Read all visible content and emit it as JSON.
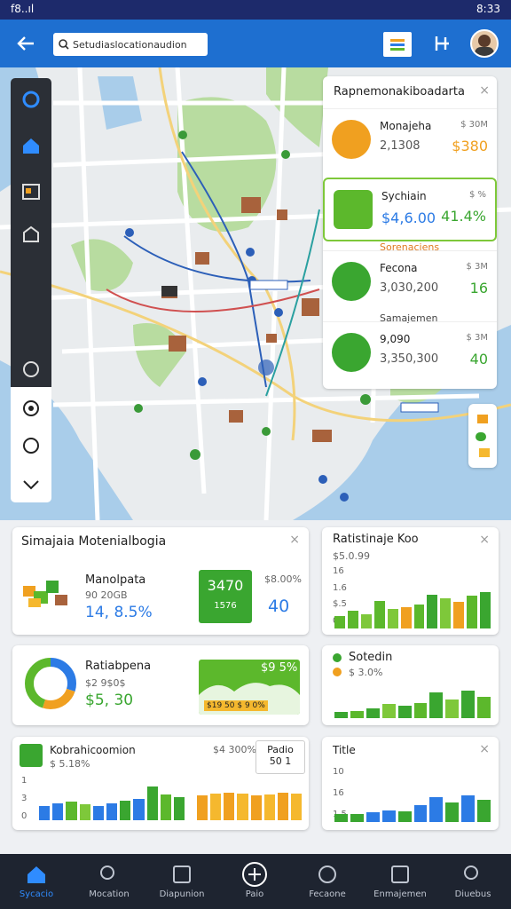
{
  "status_bar": {
    "carrier": "f8..ıl",
    "time": "8:33"
  },
  "app_bar": {
    "search": "Setudiaslocationaudion"
  },
  "side_panel": {
    "title": "Rapnemonakiboadarta",
    "items": [
      {
        "name": "Monajeha",
        "value": "2,1308",
        "tag": "$ 30M",
        "amount": "$380"
      },
      {
        "name": "Sychiain",
        "value": "$4,6.00",
        "tag": "$ %",
        "amount": "41.4%"
      },
      {
        "name": "Fecona",
        "value": "3,030,200",
        "tag": "$ 3M",
        "amount": "16"
      },
      {
        "name": "9,090",
        "value": "3,350,300",
        "tag": "$ 3M",
        "amount": "40"
      }
    ],
    "section": "Sorenaciens",
    "subsection": "Samajemen"
  },
  "cards": [
    {
      "title": "Simajaia Motenialbogia",
      "name": "Manolpata",
      "sub": "90 20GB",
      "value": "14, 8.5%",
      "badge": "3470",
      "badge_sub": "1576",
      "stat": "$8.00%",
      "stat_value": "40"
    },
    {
      "title": "Ratistinaje Koo",
      "sub": "$5.0.99",
      "yticks": [
        "16",
        "1.6",
        "$.5",
        "0"
      ],
      "values": [
        20,
        30,
        24,
        46,
        32,
        36,
        40,
        56,
        50,
        44,
        54,
        60
      ],
      "colors": [
        "#5cb82c",
        "#5cb82c",
        "#7ec83a",
        "#5cb82c",
        "#7ec83a",
        "#f0a020",
        "#5cb82c",
        "#3aa630",
        "#7ec83a",
        "#f0a020",
        "#5cb82c",
        "#3aa630"
      ]
    },
    {
      "name": "Ratiabpena",
      "sub": "$2 9$0$",
      "value": "$5, 30",
      "area_label": "$9 5%",
      "area_tag": "$19 50 $ 9 0%",
      "donut": [
        30,
        25,
        45
      ],
      "donut_colors": [
        "#2c7be5",
        "#f0a020",
        "#5cb82c"
      ]
    },
    {
      "title": "Sotedin",
      "sub": "$ 3.0%",
      "values": [
        14,
        16,
        22,
        30,
        26,
        32,
        56,
        40,
        60,
        46
      ],
      "colors": [
        "#3aa630",
        "#5cb82c",
        "#3aa630",
        "#7ec83a",
        "#3aa630",
        "#5cb82c",
        "#3aa630",
        "#7ec83a",
        "#3aa630",
        "#5cb82c"
      ]
    },
    {
      "title": "Kobrahicoomion",
      "sub": "$ 5.18%",
      "stat": "$4 300%",
      "box": "Padio",
      "box_value": "50 1",
      "yticks": [
        "1",
        "3",
        "0"
      ],
      "values": [
        30,
        36,
        38,
        34,
        30,
        36,
        40,
        44,
        70,
        54,
        48
      ],
      "colors": [
        "#2c7be5",
        "#2c7be5",
        "#5cb82c",
        "#7ec83a",
        "#2c7be5",
        "#2c7be5",
        "#3aa630",
        "#2c7be5",
        "#3aa630",
        "#5cb82c",
        "#3aa630"
      ],
      "values2": [
        52,
        56,
        58,
        56,
        52,
        54,
        58,
        56
      ],
      "colors2": [
        "#f0a020",
        "#f5b82e",
        "#f0a020",
        "#f5b82e",
        "#f0a020",
        "#f5b82e",
        "#f0a020",
        "#f5b82e"
      ]
    },
    {
      "title": "Title",
      "yticks": [
        "10",
        "16",
        "1.5"
      ],
      "values": [
        16,
        16,
        20,
        24,
        22,
        34,
        50,
        40,
        54,
        44
      ],
      "colors": [
        "#3aa630",
        "#3aa630",
        "#2c7be5",
        "#2c7be5",
        "#3aa630",
        "#2c7be5",
        "#2c7be5",
        "#3aa630",
        "#2c7be5",
        "#3aa630"
      ]
    }
  ],
  "nav": [
    "Sycacio",
    "Mocation",
    "Diapunion",
    "Paio",
    "Fecaone",
    "Enmajemen",
    "Diuebus"
  ]
}
